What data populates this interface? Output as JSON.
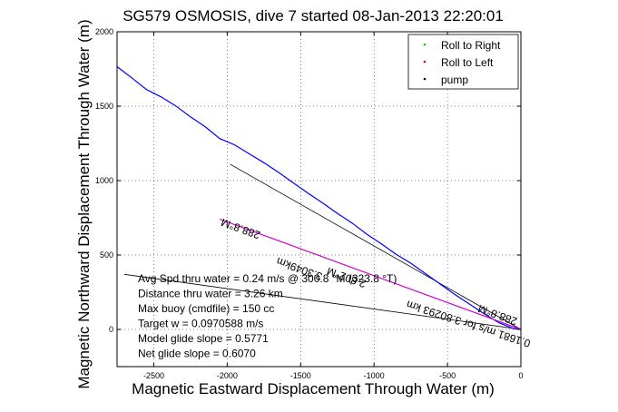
{
  "chart_data": {
    "type": "line",
    "title": "SG579 OSMOSIS, dive 7 started 08-Jan-2013 22:20:01",
    "xlabel": "Magnetic Eastward Displacement Through Water (m)",
    "ylabel": "Magnetic Northward Displacement Through Water (m)",
    "xlim": [
      -2750,
      0
    ],
    "ylim": [
      -250,
      2000
    ],
    "xticks": [
      -2500,
      -2000,
      -1500,
      -1000,
      -500,
      0
    ],
    "xtick_labels": [
      "-2500",
      "-2000",
      "-1500",
      "-1000",
      "-500",
      "0"
    ],
    "yticks": [
      0,
      500,
      1000,
      1500,
      2000
    ],
    "ytick_labels": [
      "0",
      "500",
      "1000",
      "1500",
      "2000"
    ],
    "grid": true,
    "legend_position": "top-right",
    "legend": [
      {
        "label": "Roll to Right",
        "color": "#00cc00",
        "marker": "."
      },
      {
        "label": "Roll to Left",
        "color": "#ff0000",
        "marker": "."
      },
      {
        "label": "pump",
        "color": "#000000",
        "marker": "."
      }
    ],
    "series": [
      {
        "name": "",
        "color": "#0000ff",
        "x": [
          -2750,
          -2650,
          -2550,
          -2450,
          -2350,
          -2250,
          -2150,
          -2050,
          -1950,
          -1850,
          -1750,
          -1650,
          -1550,
          -1450,
          -1350,
          -1250,
          -1150,
          -1050,
          -950,
          -850,
          -750,
          -650,
          -550,
          -450,
          -350,
          -250,
          -150,
          -50,
          0
        ],
        "y": [
          1765,
          1690,
          1612,
          1562,
          1502,
          1428,
          1362,
          1282,
          1240,
          1180,
          1120,
          1055,
          985,
          915,
          850,
          780,
          715,
          640,
          575,
          505,
          445,
          375,
          305,
          235,
          170,
          105,
          45,
          5,
          0
        ]
      },
      {
        "name": "",
        "color": "#cc00cc",
        "x": [
          -2050,
          0
        ],
        "y": [
          740,
          0
        ]
      }
    ],
    "lines": [
      {
        "color": "#000000",
        "x": [
          -1980,
          0
        ],
        "y": [
          1110,
          0
        ]
      },
      {
        "color": "#000000",
        "x": [
          -2700,
          0
        ],
        "y": [
          370,
          0
        ]
      }
    ],
    "stats": [
      "Avg Spd thru water =  0.24 m/s @ 300.8   °M (323.8 °T)",
      "Distance thru water =  3.26 km",
      "Max buoy (cmdfile) = 150 cc",
      "Target w = 0.0970588 m/s",
      "Model glide slope = 0.5771",
      "Net glide slope = 0.6070"
    ],
    "annotations": [
      {
        "text": "288.8°M",
        "x": -1900,
        "y": 700,
        "rotate": 200
      },
      {
        "text": "3.3049km",
        "x": -1500,
        "y": 430,
        "rotate": 200
      },
      {
        "text": "2.802°M",
        "x": -1180,
        "y": 372,
        "rotate": 200
      },
      {
        "text": "0.1681 m/s for 3.80293 km",
        "x": -350,
        "y": 60,
        "rotate": 198
      },
      {
        "text": "288.8°M",
        "x": -150,
        "y": 120,
        "rotate": 200
      }
    ]
  }
}
